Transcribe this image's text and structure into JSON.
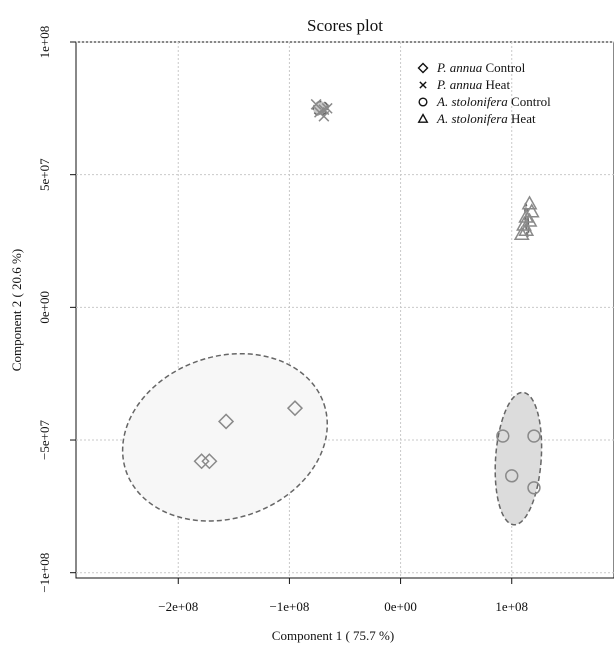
{
  "chart_data": {
    "type": "scatter",
    "title": "Scores plot",
    "xlabel": "Component 1 ( 75.7 %)",
    "ylabel": "Component 2 ( 20.6 %)",
    "xlim": [
      -292000000.0,
      192000000.0
    ],
    "ylim": [
      -102000000.0,
      100000000.0
    ],
    "grid": true,
    "legend_position": "top-right",
    "x_ticks": [
      {
        "value": -200000000.0,
        "label": "−2e+08"
      },
      {
        "value": -100000000.0,
        "label": "−1e+08"
      },
      {
        "value": 0,
        "label": "0e+00"
      },
      {
        "value": 100000000.0,
        "label": "1e+08"
      }
    ],
    "y_ticks": [
      {
        "value": -100000000.0,
        "label": "−1e+08"
      },
      {
        "value": -50000000.0,
        "label": "−5e+07"
      },
      {
        "value": 0,
        "label": "0e+00"
      },
      {
        "value": 50000000.0,
        "label": "5e+07"
      },
      {
        "value": 100000000.0,
        "label": "1e+08"
      }
    ],
    "legend": [
      {
        "italic": "P. annua",
        "rest": " Control",
        "marker": "diamond"
      },
      {
        "italic": "P. annua",
        "rest": "  Heat",
        "marker": "cross"
      },
      {
        "italic": "A. stolonifera",
        "rest": " Control",
        "marker": "circle"
      },
      {
        "italic": "A. stolonifera",
        "rest": " Heat",
        "marker": "triangle"
      }
    ],
    "series": [
      {
        "marker": "diamond",
        "points": [
          [
            -157000000.0,
            -43000000.0
          ],
          [
            -179000000.0,
            -58000000.0
          ],
          [
            -172000000.0,
            -58000000.0
          ],
          [
            -95000000.0,
            -38000000.0
          ]
        ],
        "ellipse": {
          "center": [
            -158000000.0,
            -49000000.0
          ],
          "semi_axes": [
            94000000.0,
            30500000.0
          ],
          "angle_deg": 18.7,
          "fill": "#f7f7f7"
        }
      },
      {
        "marker": "cross",
        "points": [
          [
            -76000000.0,
            76500000.0
          ],
          [
            -69000000.0,
            74500000.0
          ],
          [
            -73000000.0,
            73500000.0
          ],
          [
            -66000000.0,
            75000000.0
          ],
          [
            -69000000.0,
            72000000.0
          ]
        ],
        "ellipse": {
          "center": [
            -72000000.0,
            75000000.0
          ],
          "semi_axes": [
            6800000.0,
            2500000.0
          ],
          "angle_deg": 25,
          "fill": "#c8c8c8"
        }
      },
      {
        "marker": "circle",
        "points": [
          [
            92000000.0,
            -48500000.0
          ],
          [
            120000000.0,
            -48500000.0
          ],
          [
            100000000.0,
            -63500000.0
          ],
          [
            120000000.0,
            -68000000.0
          ]
        ],
        "ellipse": {
          "center": [
            106000000.0,
            -57000000.0
          ],
          "semi_axes": [
            20500000.0,
            25000000.0
          ],
          "angle_deg": -4,
          "fill": "#dcdcdc"
        }
      },
      {
        "marker": "triangle",
        "points": [
          [
            116000000.0,
            39000000.0
          ],
          [
            118000000.0,
            36000000.0
          ],
          [
            113000000.0,
            34000000.0
          ],
          [
            116000000.0,
            32500000.0
          ],
          [
            111000000.0,
            31000000.0
          ],
          [
            113000000.0,
            29000000.0
          ],
          [
            109000000.0,
            27500000.0
          ]
        ],
        "ellipse": {
          "center": [
            113500000.0,
            33000000.0
          ],
          "semi_axes": [
            1300000.0,
            6200000.0
          ],
          "angle_deg": 4,
          "fill": "#b5b5b5"
        }
      }
    ]
  }
}
